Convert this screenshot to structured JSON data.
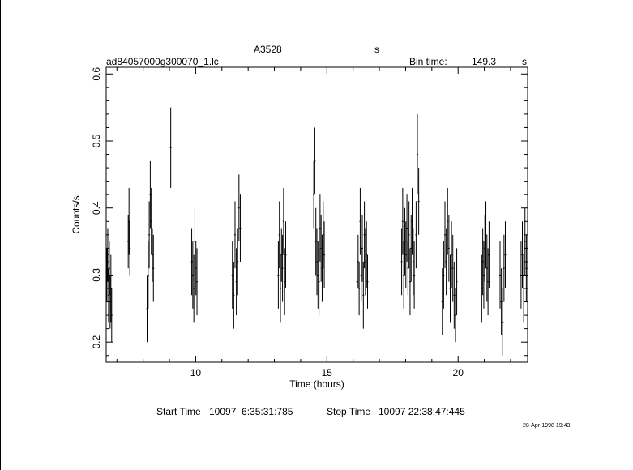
{
  "header": {
    "object": "A3528",
    "object_unit": "s",
    "filename": "ad84057000g300070_1.lc",
    "bin_time_label": "Bin time:",
    "bin_time_value": "149.3",
    "bin_time_unit": "s"
  },
  "footer": {
    "start_label": "Start Time",
    "start_value": "10097  6:35:31:785",
    "stop_label": "Stop Time",
    "stop_value": "10097 22:38:47:445",
    "plot_date": "28-Apr-1998 19:43"
  },
  "chart_data": {
    "type": "scatter",
    "xlabel": "Time (hours)",
    "ylabel": "Counts/s",
    "xlim": [
      6.59,
      22.65
    ],
    "ylim": [
      0.17,
      0.61
    ],
    "xticks": [
      10,
      15,
      20
    ],
    "yticks": [
      0.2,
      0.3,
      0.4,
      0.5,
      0.6
    ],
    "ytick_labels": [
      "0.2",
      "0.3",
      "0.4",
      "0.5",
      "0.6"
    ],
    "grid": false,
    "series": [
      {
        "points": [
          [
            6.62,
            0.3,
            0.04
          ],
          [
            6.65,
            0.33,
            0.04
          ],
          [
            6.68,
            0.27,
            0.04
          ],
          [
            6.71,
            0.31,
            0.04
          ],
          [
            6.74,
            0.26,
            0.04
          ],
          [
            6.77,
            0.28,
            0.05
          ],
          [
            6.8,
            0.24,
            0.04
          ],
          [
            7.43,
            0.35,
            0.04
          ],
          [
            7.46,
            0.38,
            0.05
          ],
          [
            7.49,
            0.34,
            0.04
          ],
          [
            8.15,
            0.25,
            0.05
          ],
          [
            8.19,
            0.3,
            0.05
          ],
          [
            8.23,
            0.36,
            0.05
          ],
          [
            8.27,
            0.42,
            0.05
          ],
          [
            8.31,
            0.38,
            0.05
          ],
          [
            8.35,
            0.33,
            0.04
          ],
          [
            8.39,
            0.31,
            0.05
          ],
          [
            9.05,
            0.49,
            0.06
          ],
          [
            9.85,
            0.32,
            0.05
          ],
          [
            9.89,
            0.3,
            0.05
          ],
          [
            9.93,
            0.28,
            0.05
          ],
          [
            9.97,
            0.35,
            0.05
          ],
          [
            10.01,
            0.31,
            0.04
          ],
          [
            10.05,
            0.29,
            0.05
          ],
          [
            11.4,
            0.3,
            0.05
          ],
          [
            11.45,
            0.27,
            0.05
          ],
          [
            11.5,
            0.36,
            0.05
          ],
          [
            11.55,
            0.29,
            0.05
          ],
          [
            11.6,
            0.32,
            0.05
          ],
          [
            11.65,
            0.4,
            0.05
          ],
          [
            11.7,
            0.37,
            0.05
          ],
          [
            13.15,
            0.3,
            0.05
          ],
          [
            13.19,
            0.36,
            0.05
          ],
          [
            13.23,
            0.28,
            0.05
          ],
          [
            13.27,
            0.33,
            0.04
          ],
          [
            13.31,
            0.31,
            0.05
          ],
          [
            13.35,
            0.38,
            0.05
          ],
          [
            13.39,
            0.29,
            0.05
          ],
          [
            13.43,
            0.33,
            0.05
          ],
          [
            14.5,
            0.42,
            0.05
          ],
          [
            14.54,
            0.47,
            0.05
          ],
          [
            14.58,
            0.35,
            0.05
          ],
          [
            14.62,
            0.32,
            0.05
          ],
          [
            14.66,
            0.3,
            0.05
          ],
          [
            14.7,
            0.29,
            0.05
          ],
          [
            14.74,
            0.37,
            0.05
          ],
          [
            14.78,
            0.34,
            0.05
          ],
          [
            14.82,
            0.31,
            0.05
          ],
          [
            14.86,
            0.36,
            0.05
          ],
          [
            14.9,
            0.33,
            0.05
          ],
          [
            16.15,
            0.29,
            0.04
          ],
          [
            16.19,
            0.32,
            0.04
          ],
          [
            16.23,
            0.28,
            0.04
          ],
          [
            16.27,
            0.38,
            0.05
          ],
          [
            16.31,
            0.3,
            0.04
          ],
          [
            16.35,
            0.34,
            0.05
          ],
          [
            16.39,
            0.27,
            0.05
          ],
          [
            16.43,
            0.36,
            0.05
          ],
          [
            16.47,
            0.32,
            0.05
          ],
          [
            16.51,
            0.33,
            0.05
          ],
          [
            16.55,
            0.29,
            0.04
          ],
          [
            17.85,
            0.32,
            0.05
          ],
          [
            17.89,
            0.38,
            0.05
          ],
          [
            17.93,
            0.3,
            0.05
          ],
          [
            17.97,
            0.35,
            0.05
          ],
          [
            18.01,
            0.33,
            0.05
          ],
          [
            18.05,
            0.37,
            0.05
          ],
          [
            18.09,
            0.31,
            0.04
          ],
          [
            18.13,
            0.36,
            0.05
          ],
          [
            18.17,
            0.29,
            0.05
          ],
          [
            18.21,
            0.34,
            0.05
          ],
          [
            18.25,
            0.38,
            0.05
          ],
          [
            18.29,
            0.32,
            0.05
          ],
          [
            18.33,
            0.3,
            0.05
          ],
          [
            18.4,
            0.36,
            0.05
          ],
          [
            18.45,
            0.48,
            0.06
          ],
          [
            18.5,
            0.41,
            0.05
          ],
          [
            19.4,
            0.26,
            0.05
          ],
          [
            19.45,
            0.3,
            0.05
          ],
          [
            19.5,
            0.36,
            0.05
          ],
          [
            19.55,
            0.32,
            0.05
          ],
          [
            19.6,
            0.38,
            0.05
          ],
          [
            19.65,
            0.34,
            0.05
          ],
          [
            19.7,
            0.28,
            0.05
          ],
          [
            19.75,
            0.33,
            0.05
          ],
          [
            19.8,
            0.31,
            0.05
          ],
          [
            19.85,
            0.27,
            0.05
          ],
          [
            19.9,
            0.24,
            0.04
          ],
          [
            19.95,
            0.29,
            0.05
          ],
          [
            20.9,
            0.28,
            0.05
          ],
          [
            20.94,
            0.32,
            0.05
          ],
          [
            20.98,
            0.3,
            0.05
          ],
          [
            21.02,
            0.34,
            0.05
          ],
          [
            21.06,
            0.36,
            0.05
          ],
          [
            21.1,
            0.31,
            0.05
          ],
          [
            21.14,
            0.29,
            0.05
          ],
          [
            21.18,
            0.33,
            0.05
          ],
          [
            21.6,
            0.3,
            0.05
          ],
          [
            21.65,
            0.26,
            0.05
          ],
          [
            21.7,
            0.23,
            0.05
          ],
          [
            21.75,
            0.31,
            0.05
          ],
          [
            21.8,
            0.33,
            0.05
          ],
          [
            22.4,
            0.3,
            0.05
          ],
          [
            22.45,
            0.33,
            0.05
          ],
          [
            22.5,
            0.28,
            0.05
          ],
          [
            22.55,
            0.35,
            0.05
          ],
          [
            22.6,
            0.31,
            0.05
          ]
        ]
      }
    ]
  }
}
